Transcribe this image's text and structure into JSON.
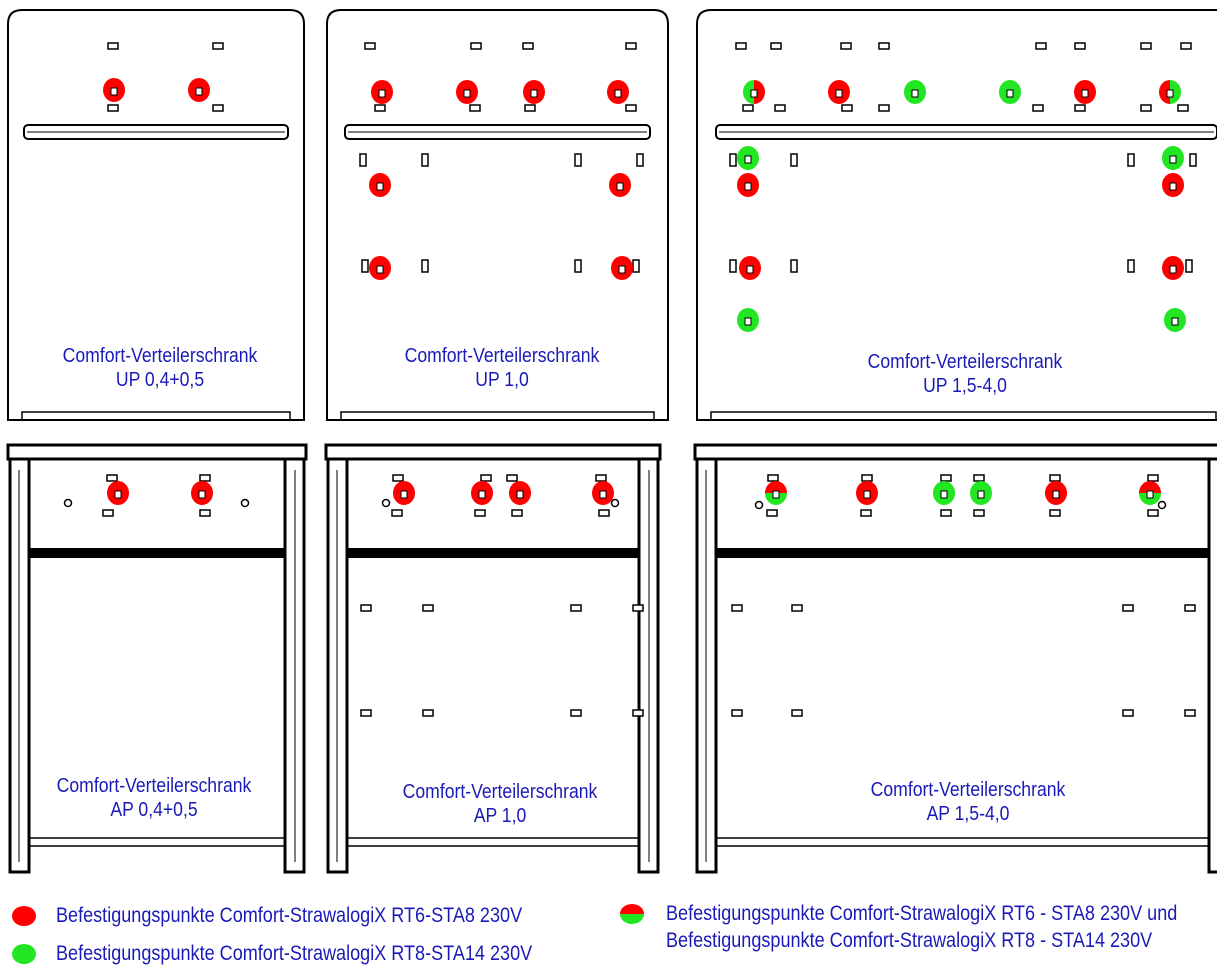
{
  "colors": {
    "red": "#ff0000",
    "green": "#22e622",
    "text": "#1a1ab8",
    "line": "#000000"
  },
  "cabinets": [
    {
      "id": "up-04-05",
      "title": "Comfort-Verteilerschrank",
      "model": "UP 0,4+0,5"
    },
    {
      "id": "up-10",
      "title": "Comfort-Verteilerschrank",
      "model": "UP 1,0"
    },
    {
      "id": "up-15-40",
      "title": "Comfort-Verteilerschrank",
      "model": "UP 1,5-4,0"
    },
    {
      "id": "ap-04-05",
      "title": "Comfort-Verteilerschrank",
      "model": "AP 0,4+0,5"
    },
    {
      "id": "ap-10",
      "title": "Comfort-Verteilerschrank",
      "model": "AP 1,0"
    },
    {
      "id": "ap-15-40",
      "title": "Comfort-Verteilerschrank",
      "model": "AP 1,5-4,0"
    }
  ],
  "legend": {
    "red": "Befestigungspunkte Comfort-StrawalogiX RT6-STA8 230V",
    "green": "Befestigungspunkte Comfort-StrawalogiX RT8-STA14 230V",
    "combined_line1": "Befestigungspunkte Comfort-StrawalogiX RT6 - STA8 230V und",
    "combined_line2": "Befestigungspunkte Comfort-StrawalogiX RT8 - STA14 230V"
  }
}
